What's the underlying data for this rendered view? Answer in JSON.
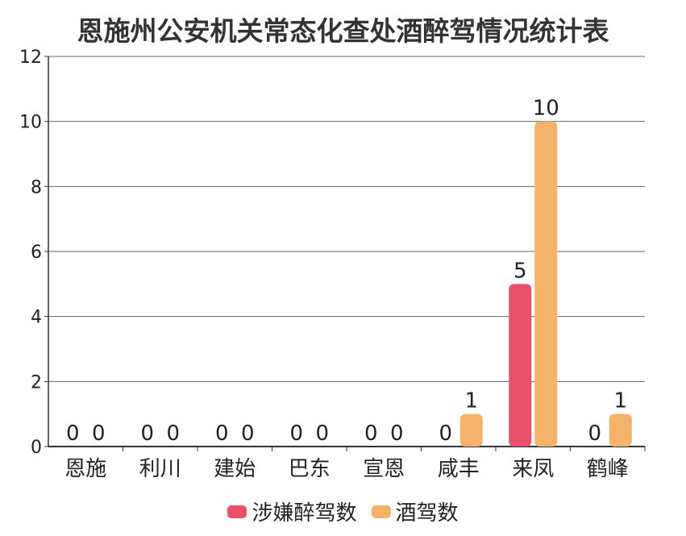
{
  "chart_data": {
    "type": "bar",
    "title": "恩施州公安机关常态化查处酒醉驾情况统计表",
    "categories": [
      "恩施",
      "利川",
      "建始",
      "巴东",
      "宣恩",
      "咸丰",
      "来凤",
      "鹤峰"
    ],
    "series": [
      {
        "name": "涉嫌醉驾数",
        "color": "#e8506c",
        "values": [
          0,
          0,
          0,
          0,
          0,
          0,
          5,
          0
        ]
      },
      {
        "name": "酒驾数",
        "color": "#f5b26b",
        "values": [
          0,
          0,
          0,
          0,
          0,
          1,
          10,
          1
        ]
      }
    ],
    "ylim": [
      0,
      12
    ],
    "yticks": [
      0,
      2,
      4,
      6,
      8,
      10,
      12
    ],
    "grid": true,
    "legend_position": "bottom"
  }
}
